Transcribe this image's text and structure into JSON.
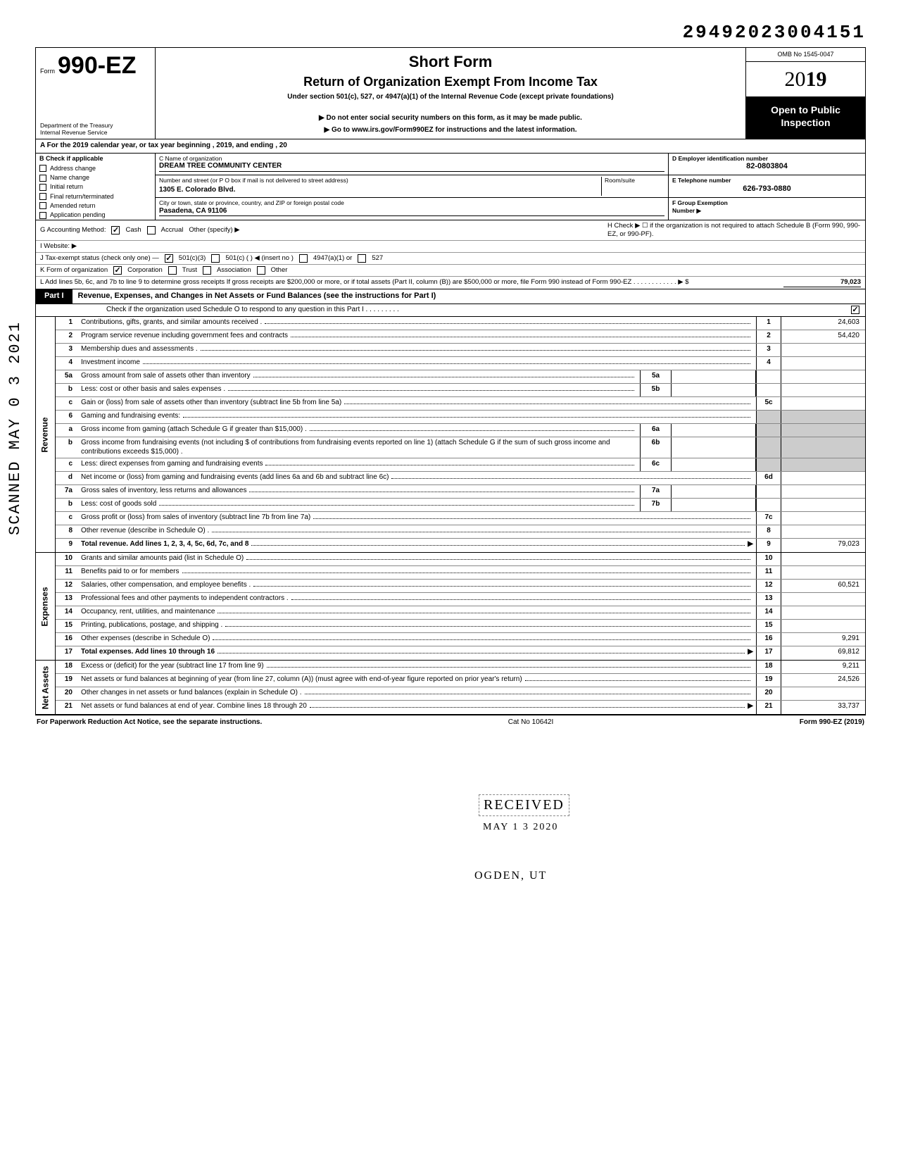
{
  "dln": "29492023004151",
  "omb": "OMB No 1545-0047",
  "form_label": "Form",
  "form_number": "990-EZ",
  "dept1": "Department of the Treasury",
  "dept2": "Internal Revenue Service",
  "title_short": "Short Form",
  "title_main": "Return of Organization Exempt From Income Tax",
  "title_under": "Under section 501(c), 527, or 4947(a)(1) of the Internal Revenue Code (except private foundations)",
  "title_donot": "▶ Do not enter social security numbers on this form, as it may be made public.",
  "title_goto": "▶ Go to www.irs.gov/Form990EZ for instructions and the latest information.",
  "tax_year_prefix": "20",
  "tax_year_bold": "19",
  "open_line1": "Open to Public",
  "open_line2": "Inspection",
  "lineA": "A  For the 2019 calendar year, or tax year beginning                                                           , 2019, and ending                                           , 20",
  "B_label": "B  Check if applicable",
  "B_items": [
    "Address change",
    "Name change",
    "Initial return",
    "Final return/terminated",
    "Amended return",
    "Application pending"
  ],
  "C_name_label": "C  Name of organization",
  "C_name": "DREAM TREE COMMUNITY CENTER",
  "C_addr_label": "Number and street (or P O  box if mail is not delivered to street address)",
  "C_room_label": "Room/suite",
  "C_addr": "1305 E. Colorado Blvd.",
  "C_city_label": "City or town, state or province, country, and ZIP or foreign postal code",
  "C_city": "Pasadena, CA 91106",
  "D_label": "D  Employer identification number",
  "D_val": "82-0803804",
  "E_label": "E  Telephone number",
  "E_val": "626-793-0880",
  "F_label": "F  Group Exemption",
  "F_label2": "Number  ▶",
  "G_label": "G  Accounting Method:",
  "G_cash": "Cash",
  "G_accrual": "Accrual",
  "G_other": "Other (specify) ▶",
  "H_text": "H  Check ▶ ☐ if the organization is not required to attach Schedule B (Form 990, 990-EZ, or 990-PF).",
  "I_label": "I   Website: ▶",
  "J_label": "J  Tax-exempt status (check only one) —",
  "J_501c3": "501(c)(3)",
  "J_501c": "501(c) (          ) ◀ (insert no )",
  "J_4947": "4947(a)(1) or",
  "J_527": "527",
  "K_label": "K  Form of organization",
  "K_corp": "Corporation",
  "K_trust": "Trust",
  "K_assoc": "Association",
  "K_other": "Other",
  "L_text": "L  Add lines 5b, 6c, and 7b to line 9 to determine gross receipts  If gross receipts are $200,000 or more, or if total assets (Part II, column (B)) are $500,000 or more, file Form 990 instead of Form 990-EZ     .    .    .    .    .    .    .    .    .    .    .    .    ▶   $",
  "L_amt": "79,023",
  "part1_label": "Part I",
  "part1_title": "Revenue, Expenses, and Changes in Net Assets or Fund Balances (see the instructions for Part I)",
  "part1_sub": "Check if the organization used Schedule O to respond to any question in this Part I  .    .    .    .    .    .    .    .    .",
  "sections": {
    "revenue": "Revenue",
    "expenses": "Expenses",
    "netassets": "Net Assets"
  },
  "lines": [
    {
      "n": "1",
      "d": "Contributions, gifts, grants, and similar amounts received .",
      "r": "1",
      "a": "24,603"
    },
    {
      "n": "2",
      "d": "Program service revenue including government fees and contracts",
      "r": "2",
      "a": "54,420"
    },
    {
      "n": "3",
      "d": "Membership dues and assessments .",
      "r": "3",
      "a": ""
    },
    {
      "n": "4",
      "d": "Investment income",
      "r": "4",
      "a": ""
    },
    {
      "n": "5a",
      "d": "Gross amount from sale of assets other than inventory",
      "sub": "5a"
    },
    {
      "n": "b",
      "d": "Less: cost or other basis and sales expenses .",
      "sub": "5b"
    },
    {
      "n": "c",
      "d": "Gain or (loss) from sale of assets other than inventory (subtract line 5b from line 5a)",
      "r": "5c",
      "a": ""
    },
    {
      "n": "6",
      "d": "Gaming and fundraising events:",
      "shade": true
    },
    {
      "n": "a",
      "d": "Gross income from gaming (attach Schedule G if greater than $15,000) .",
      "sub": "6a",
      "shade": true
    },
    {
      "n": "b",
      "d": "Gross income from fundraising events (not including  $                          of contributions from fundraising events reported on line 1) (attach Schedule G if the sum of such gross income and contributions exceeds $15,000) .",
      "sub": "6b",
      "shade": true
    },
    {
      "n": "c",
      "d": "Less: direct expenses from gaming and fundraising events",
      "sub": "6c",
      "shade": true
    },
    {
      "n": "d",
      "d": "Net income or (loss) from gaming and fundraising events (add lines 6a and 6b and subtract line 6c)",
      "r": "6d",
      "a": ""
    },
    {
      "n": "7a",
      "d": "Gross sales of inventory, less returns and allowances",
      "sub": "7a"
    },
    {
      "n": "b",
      "d": "Less: cost of goods sold",
      "sub": "7b"
    },
    {
      "n": "c",
      "d": "Gross profit or (loss) from sales of inventory (subtract line 7b from line 7a)",
      "r": "7c",
      "a": ""
    },
    {
      "n": "8",
      "d": "Other revenue (describe in Schedule O) .",
      "r": "8",
      "a": ""
    },
    {
      "n": "9",
      "d": "Total revenue. Add lines 1, 2, 3, 4, 5c, 6d, 7c, and 8",
      "r": "9",
      "a": "79,023",
      "bold": true,
      "arr": true
    }
  ],
  "exp_lines": [
    {
      "n": "10",
      "d": "Grants and similar amounts paid (list in Schedule O)",
      "r": "10",
      "a": ""
    },
    {
      "n": "11",
      "d": "Benefits paid to or for members",
      "r": "11",
      "a": ""
    },
    {
      "n": "12",
      "d": "Salaries, other compensation, and employee benefits .",
      "r": "12",
      "a": "60,521"
    },
    {
      "n": "13",
      "d": "Professional fees and other payments to independent contractors .",
      "r": "13",
      "a": ""
    },
    {
      "n": "14",
      "d": "Occupancy, rent, utilities, and maintenance",
      "r": "14",
      "a": ""
    },
    {
      "n": "15",
      "d": "Printing, publications, postage, and shipping .",
      "r": "15",
      "a": ""
    },
    {
      "n": "16",
      "d": "Other expenses (describe in Schedule O)",
      "r": "16",
      "a": "9,291"
    },
    {
      "n": "17",
      "d": "Total expenses. Add lines 10 through 16",
      "r": "17",
      "a": "69,812",
      "bold": true,
      "arr": true
    }
  ],
  "na_lines": [
    {
      "n": "18",
      "d": "Excess or (deficit) for the year (subtract line 17 from line 9)",
      "r": "18",
      "a": "9,211"
    },
    {
      "n": "19",
      "d": "Net assets or fund balances at beginning of year (from line 27, column (A)) (must agree with end-of-year figure reported on prior year's return)",
      "r": "19",
      "a": "24,526"
    },
    {
      "n": "20",
      "d": "Other changes in net assets or fund balances (explain in Schedule O) .",
      "r": "20",
      "a": ""
    },
    {
      "n": "21",
      "d": "Net assets or fund balances at end of year. Combine lines 18 through 20",
      "r": "21",
      "a": "33,737",
      "arr": true
    }
  ],
  "footer_left": "For Paperwork Reduction Act Notice, see the separate instructions.",
  "footer_mid": "Cat No 10642I",
  "footer_right": "Form 990-EZ (2019)",
  "stamp_scanned": "SCANNED MAY 0 3 2021",
  "stamp_received": "RECEIVED",
  "stamp_date": "MAY 1 3 2020",
  "stamp_ogden": "OGDEN, UT",
  "colors": {
    "black": "#000000",
    "white": "#ffffff",
    "shade": "#cccccc"
  }
}
